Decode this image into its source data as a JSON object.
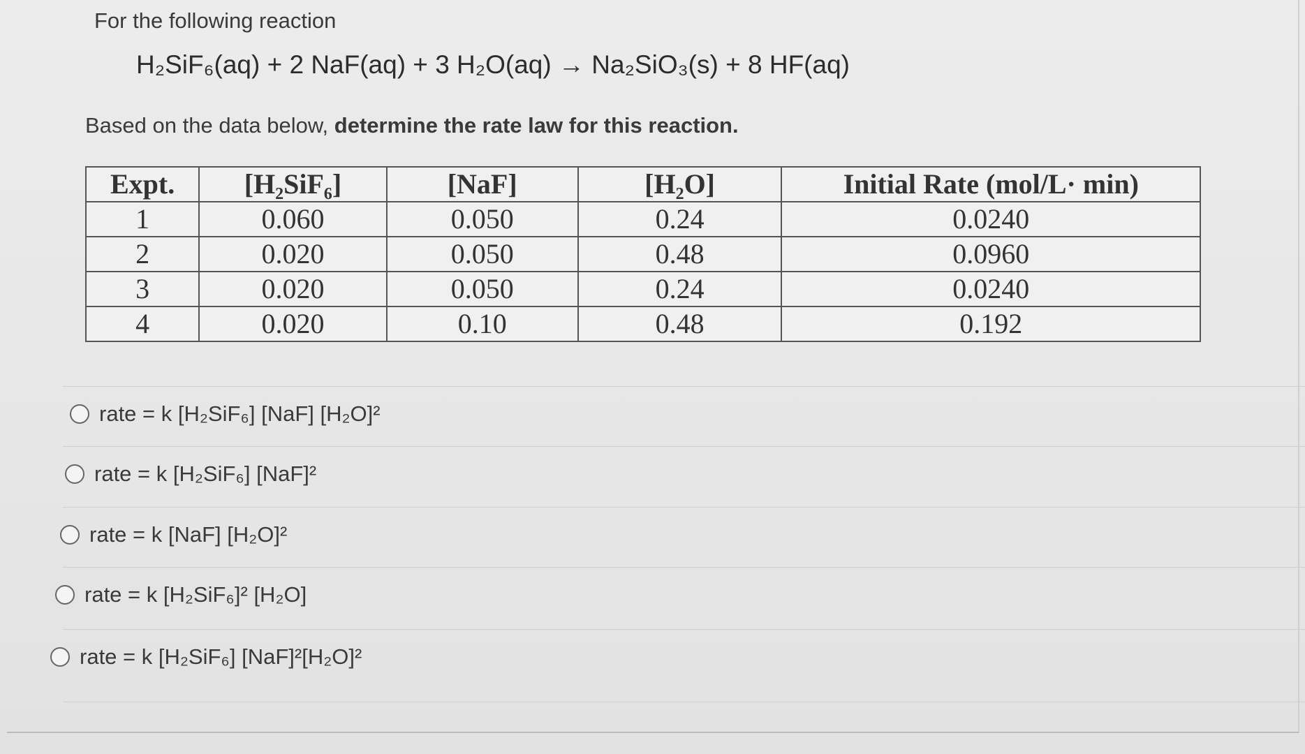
{
  "header": {
    "intro": "For the following reaction",
    "equation": "H₂SiF₆(aq) + 2 NaF(aq) + 3 H₂O(aq) → Na₂SiO₃(s) + 8 HF(aq)",
    "instruction_plain": "Based on the data below,",
    "instruction_bold": "determine the rate law for this reaction."
  },
  "table": {
    "columns": [
      "Expt.",
      "[H₂SiF₆]",
      "[NaF]",
      "[H₂O]",
      "Initial Rate (mol/L· min)"
    ],
    "rows": [
      [
        "1",
        "0.060",
        "0.050",
        "0.24",
        "0.0240"
      ],
      [
        "2",
        "0.020",
        "0.050",
        "0.48",
        "0.0960"
      ],
      [
        "3",
        "0.020",
        "0.050",
        "0.24",
        "0.0240"
      ],
      [
        "4",
        "0.020",
        "0.10",
        "0.48",
        "0.192"
      ]
    ]
  },
  "options": [
    "rate = k [H₂SiF₆] [NaF] [H₂O]²",
    "rate = k [H₂SiF₆] [NaF]²",
    "rate = k [NaF] [H₂O]²",
    "rate = k [H₂SiF₆]² [H₂O]",
    "rate = k [H₂SiF₆] [NaF]²[H₂O]²"
  ]
}
